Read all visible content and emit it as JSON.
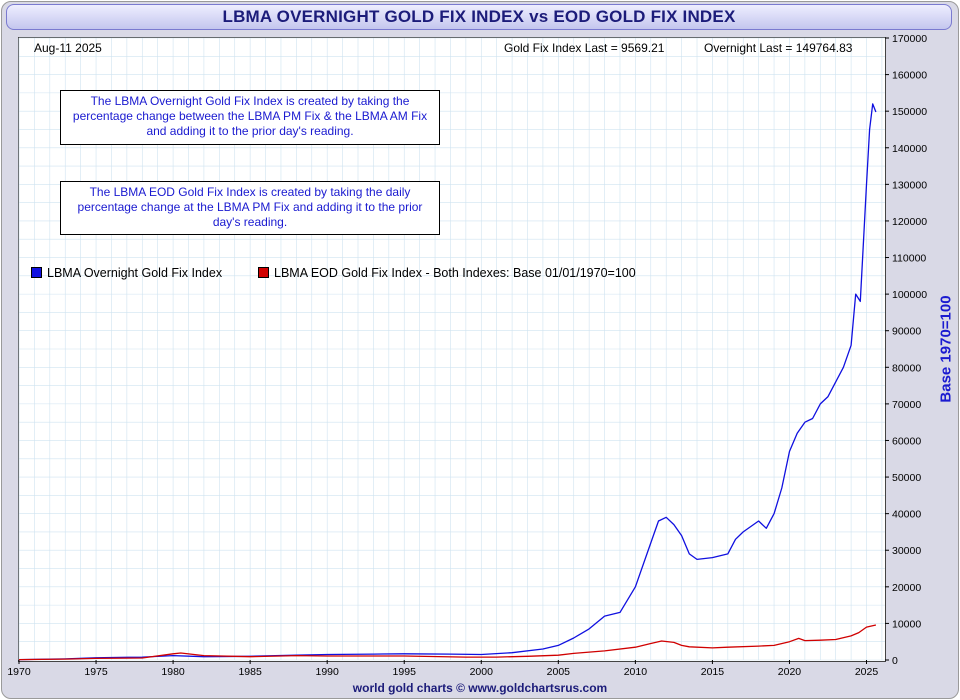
{
  "title": "LBMA OVERNIGHT GOLD FIX INDEX vs EOD GOLD FIX INDEX",
  "date_label": "Aug-11  2025",
  "stats": {
    "gold_fix_last": "Gold Fix Index Last = 9569.21",
    "overnight_last": "Overnight Last = 149764.83"
  },
  "notes": [
    "The LBMA Overnight Gold Fix Index is created by taking the percentage change between the LBMA PM Fix & the LBMA AM Fix and adding it to the prior day's reading.",
    "The LBMA EOD Gold Fix Index is created by taking the daily percentage change at the LBMA PM Fix and adding it to the prior day's reading."
  ],
  "source": "world gold charts © www.goldchartsrus.com",
  "colors": {
    "overnight": "#1010e0",
    "eod": "#d00000",
    "grid": "#cfe3f0",
    "title_text": "#1c1c7a"
  },
  "chart_data": {
    "type": "line",
    "title": "LBMA OVERNIGHT GOLD FIX INDEX vs EOD GOLD FIX INDEX",
    "ylabel": "Base 1970=100",
    "xlabel": "",
    "xlim": [
      1970,
      2026.2
    ],
    "ylim": [
      0,
      170000
    ],
    "x_ticks": [
      1970,
      1975,
      1980,
      1985,
      1990,
      1995,
      2000,
      2005,
      2010,
      2015,
      2020,
      2025
    ],
    "y_ticks": [
      0,
      10000,
      20000,
      30000,
      40000,
      50000,
      60000,
      70000,
      80000,
      90000,
      100000,
      110000,
      120000,
      130000,
      140000,
      150000,
      160000,
      170000
    ],
    "grid": true,
    "legend_position": "top-left",
    "series": [
      {
        "name": "LBMA Overnight Gold Fix Index",
        "color": "#1010e0",
        "x": [
          1970,
          1973,
          1975,
          1978,
          1980,
          1982,
          1985,
          1988,
          1990,
          1993,
          1995,
          1998,
          2000,
          2002,
          2004,
          2005,
          2006,
          2007,
          2008,
          2009,
          2010,
          2011,
          2011.5,
          2012,
          2012.5,
          2013,
          2013.5,
          2014,
          2015,
          2016,
          2016.5,
          2017,
          2018,
          2018.5,
          2019,
          2019.5,
          2020,
          2020.5,
          2021,
          2021.5,
          2022,
          2022.5,
          2023,
          2023.5,
          2024,
          2024.3,
          2024.6,
          2025,
          2025.2,
          2025.4,
          2025.61
        ],
        "y": [
          100,
          300,
          600,
          800,
          1200,
          900,
          1000,
          1300,
          1500,
          1600,
          1700,
          1600,
          1500,
          2000,
          3000,
          4000,
          6000,
          8500,
          12000,
          13000,
          20000,
          32000,
          38000,
          39000,
          37000,
          34000,
          29000,
          27500,
          28000,
          29000,
          33000,
          35000,
          38000,
          36000,
          40000,
          47000,
          57000,
          62000,
          65000,
          66000,
          70000,
          72000,
          76000,
          80000,
          86000,
          100000,
          98000,
          130000,
          145000,
          152000,
          149764.83
        ]
      },
      {
        "name": "LBMA EOD Gold Fix Index - Both Indexes: Base 01/01/1970=100",
        "color": "#d00000",
        "x": [
          1970,
          1973,
          1975,
          1978,
          1980,
          1980.5,
          1982,
          1985,
          1988,
          1990,
          1995,
          1999,
          2001,
          2003,
          2005,
          2006,
          2008,
          2010,
          2011,
          2011.7,
          2012.5,
          2013,
          2013.5,
          2015,
          2016,
          2018,
          2019,
          2020,
          2020.6,
          2021,
          2022,
          2023,
          2024,
          2024.5,
          2025,
          2025.61
        ],
        "y": [
          100,
          250,
          450,
          550,
          1700,
          1900,
          1200,
          900,
          1200,
          1100,
          1100,
          800,
          800,
          1000,
          1300,
          1800,
          2500,
          3500,
          4500,
          5200,
          4800,
          4000,
          3600,
          3300,
          3500,
          3800,
          4000,
          5000,
          5900,
          5300,
          5400,
          5600,
          6600,
          7500,
          9000,
          9569.21
        ]
      }
    ]
  }
}
